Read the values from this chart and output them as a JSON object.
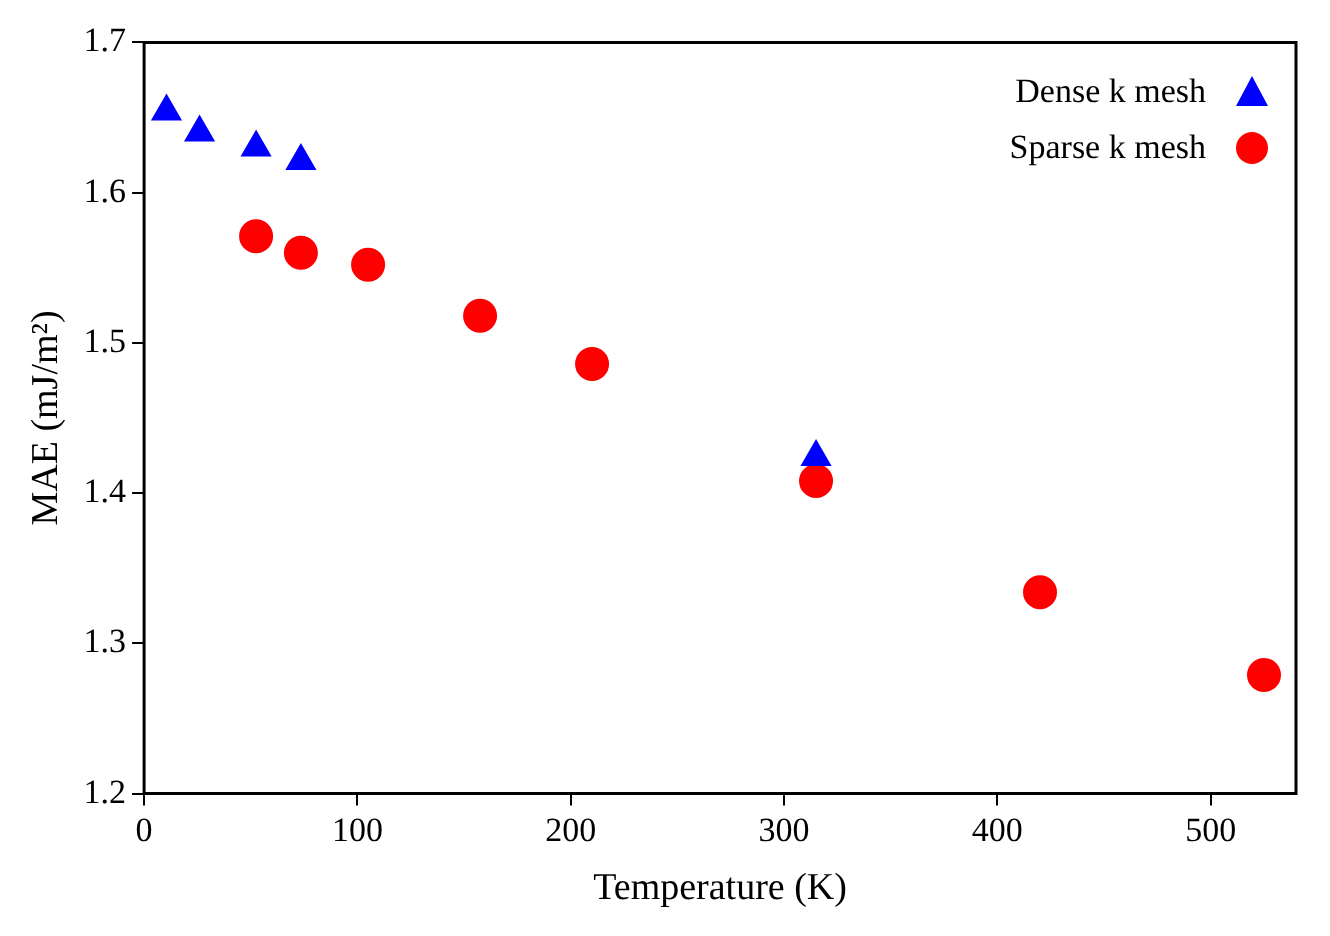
{
  "chart_data": {
    "type": "scatter",
    "xlabel": "Temperature (K)",
    "ylabel": "MAE (mJ/m²)",
    "xlim": [
      0,
      540
    ],
    "xticks": [
      0,
      100,
      200,
      300,
      400,
      500
    ],
    "ylim": [
      1.2,
      1.7
    ],
    "yticks": [
      1.2,
      1.3,
      1.4,
      1.5,
      1.6,
      1.7
    ],
    "grid": false,
    "legend": "top right",
    "series": [
      {
        "name": "Dense k mesh",
        "color": "#0000ff",
        "marker": "triangle",
        "x": [
          10.5,
          26,
          52.5,
          73.5,
          315
        ],
        "values": [
          1.654,
          1.64,
          1.63,
          1.621,
          1.424
        ]
      },
      {
        "name": "Sparse k mesh",
        "color": "#ff0000",
        "marker": "circle",
        "x": [
          52.5,
          73.5,
          105,
          157.5,
          210,
          315,
          420,
          525
        ],
        "values": [
          1.571,
          1.56,
          1.552,
          1.518,
          1.486,
          1.408,
          1.334,
          1.279
        ]
      }
    ]
  }
}
